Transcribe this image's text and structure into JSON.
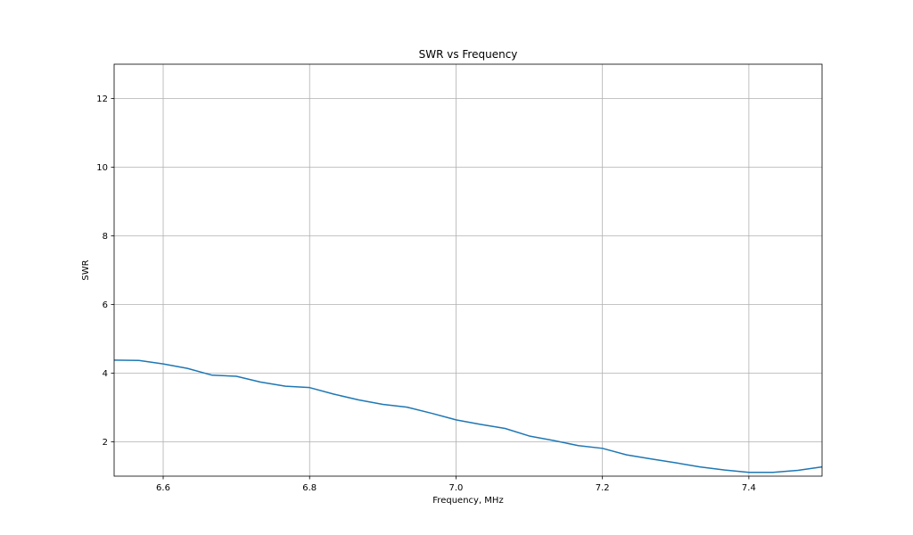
{
  "chart_data": {
    "type": "line",
    "title": "SWR vs Frequency",
    "xlabel": "Frequency, MHz",
    "ylabel": "SWR",
    "xlim": [
      6.533,
      7.5
    ],
    "ylim": [
      1.0,
      13.0
    ],
    "grid": true,
    "x_ticks": [
      6.6,
      6.8,
      7.0,
      7.2,
      7.4
    ],
    "x_tick_labels": [
      "6.6",
      "6.8",
      "7.0",
      "7.2",
      "7.4"
    ],
    "y_ticks": [
      2,
      4,
      6,
      8,
      10,
      12
    ],
    "y_tick_labels": [
      "2",
      "4",
      "6",
      "8",
      "10",
      "12"
    ],
    "series": [
      {
        "color": "#1f77b4",
        "x": [
          6.533,
          6.567,
          6.6,
          6.633,
          6.667,
          6.7,
          6.733,
          6.767,
          6.8,
          6.833,
          6.867,
          6.9,
          6.933,
          6.967,
          7.0,
          7.033,
          7.067,
          7.1,
          7.133,
          7.167,
          7.2,
          7.233,
          7.267,
          7.3,
          7.333,
          7.367,
          7.4,
          7.433,
          7.467,
          7.5
        ],
        "y": [
          4.38,
          4.37,
          4.27,
          4.14,
          3.94,
          3.91,
          3.74,
          3.62,
          3.58,
          3.39,
          3.22,
          3.09,
          3.01,
          2.83,
          2.64,
          2.51,
          2.39,
          2.17,
          2.04,
          1.89,
          1.81,
          1.62,
          1.5,
          1.39,
          1.27,
          1.18,
          1.11,
          1.11,
          1.17,
          1.27
        ]
      }
    ]
  }
}
